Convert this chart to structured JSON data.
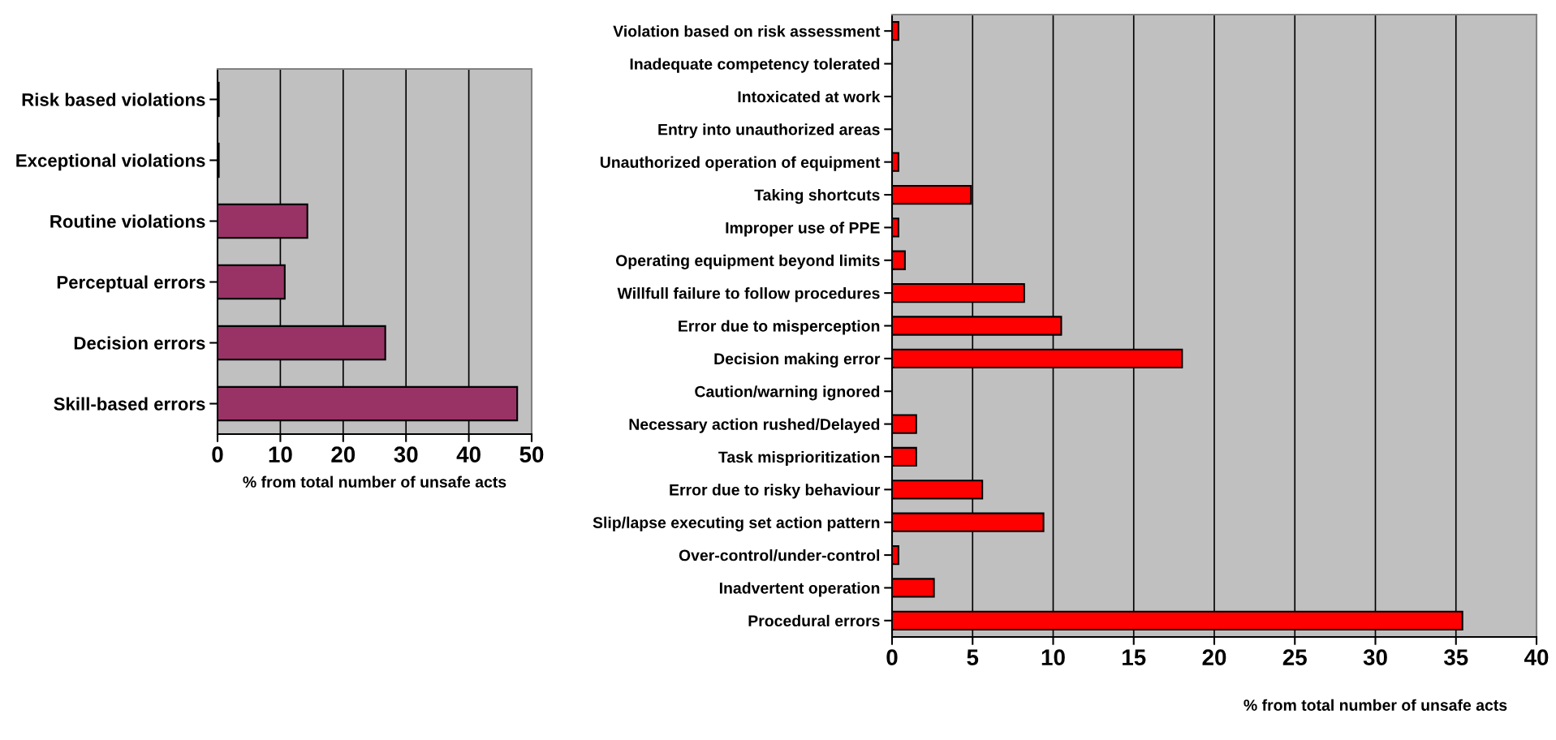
{
  "chart_data": [
    {
      "type": "bar",
      "orientation": "horizontal",
      "categories": [
        "Risk based violations",
        "Exceptional violations",
        "Routine violations",
        "Perceptual errors",
        "Decision errors",
        "Skill-based errors"
      ],
      "values": [
        0.2,
        0.2,
        14.3,
        10.7,
        26.7,
        47.7
      ],
      "color": "#993366",
      "xlim": [
        0,
        50
      ],
      "xticks": [
        0,
        10,
        20,
        30,
        40,
        50
      ],
      "xlabel": "% from total number of unsafe acts",
      "grid": "x"
    },
    {
      "type": "bar",
      "orientation": "horizontal",
      "categories": [
        "Violation based on risk assessment",
        "Inadequate competency tolerated",
        "Intoxicated at work",
        "Entry into unauthorized areas",
        "Unauthorized operation of equipment",
        "Taking shortcuts",
        "Improper use of PPE",
        "Operating equipment beyond limits",
        "Willfull failure to follow procedures",
        "Error due to misperception",
        "Decision making error",
        "Caution/warning ignored",
        "Necessary action rushed/Delayed",
        "Task misprioritization",
        "Error due to risky behaviour",
        "Slip/lapse executing set action pattern",
        "Over-control/under-control",
        "Inadvertent operation",
        "Procedural errors"
      ],
      "values": [
        0.4,
        0,
        0,
        0,
        0.4,
        4.9,
        0.4,
        0.8,
        8.2,
        10.5,
        18.0,
        0,
        1.5,
        1.5,
        5.6,
        9.4,
        0.4,
        2.6,
        35.4
      ],
      "color": "#ff0000",
      "xlim": [
        0,
        40
      ],
      "xticks": [
        0,
        5,
        10,
        15,
        20,
        25,
        30,
        35,
        40
      ],
      "xlabel": "% from total number of unsafe acts",
      "grid": "x"
    }
  ]
}
